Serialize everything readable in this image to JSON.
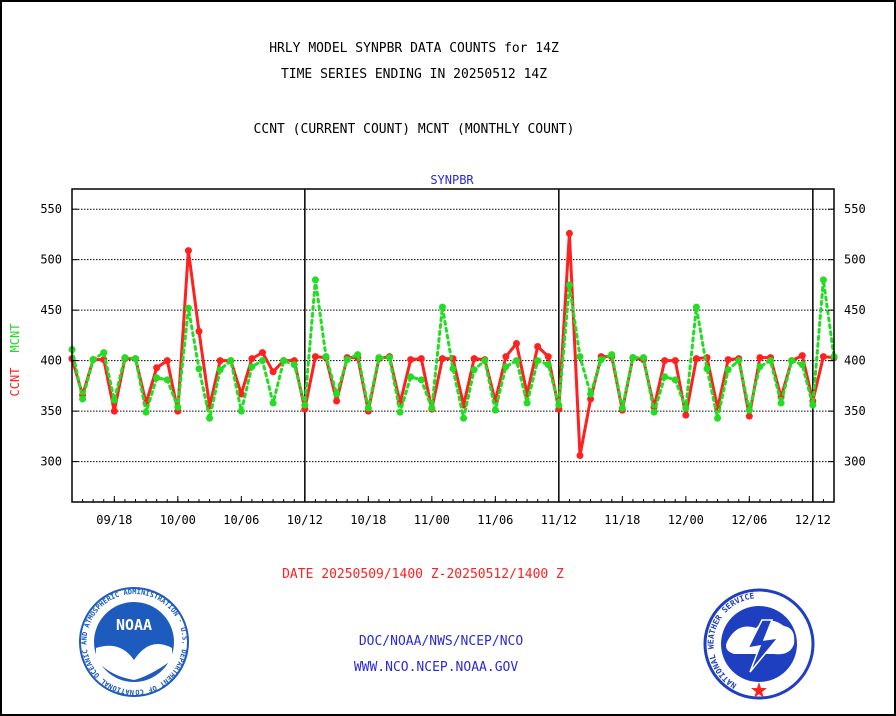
{
  "header": {
    "title_line1": "HRLY MODEL SYNPBR DATA COUNTS for 14Z",
    "title_line2": "TIME SERIES ENDING IN 20250512 14Z",
    "subtitle": "CCNT (CURRENT COUNT) MCNT (MONTHLY COUNT)"
  },
  "chart_data": {
    "type": "line",
    "title": "SYNPBR",
    "ylabel_ccnt": "CCNT",
    "ylabel_mcnt": "MCNT",
    "ylim": [
      260,
      570
    ],
    "y_ticks": [
      300,
      350,
      400,
      450,
      500,
      550
    ],
    "x_tick_labels": [
      "09/18",
      "10/00",
      "10/06",
      "10/12",
      "10/18",
      "11/00",
      "11/06",
      "11/12",
      "11/18",
      "12/00",
      "12/06",
      "12/12"
    ],
    "x_range_hours": [
      0,
      72
    ],
    "day_separators": [
      22,
      46,
      70
    ],
    "grid": true,
    "series": [
      {
        "name": "CCNT",
        "color": "#ff2020",
        "style": "solid",
        "x": [
          0,
          1,
          2,
          3,
          4,
          5,
          6,
          7,
          8,
          9,
          10,
          11,
          12,
          13,
          14,
          15,
          16,
          17,
          18,
          19,
          20,
          21,
          22,
          23,
          24,
          25,
          26,
          27,
          28,
          29,
          30,
          31,
          32,
          33,
          34,
          35,
          36,
          37,
          38,
          39,
          40,
          41,
          42,
          43,
          44,
          45,
          46,
          47,
          48,
          49,
          50,
          51,
          52,
          53,
          54,
          55,
          56,
          57,
          58,
          59,
          60,
          61,
          62,
          63,
          64,
          65,
          66,
          67,
          68,
          69,
          70,
          71,
          72
        ],
        "values": [
          402,
          366,
          401,
          401,
          350,
          402,
          402,
          358,
          393,
          400,
          350,
          509,
          429,
          355,
          400,
          400,
          367,
          402,
          408,
          389,
          400,
          400,
          352,
          404,
          403,
          360,
          403,
          403,
          350,
          402,
          404,
          358,
          401,
          402,
          352,
          402,
          402,
          356,
          402,
          401,
          360,
          404,
          417,
          367,
          414,
          404,
          352,
          526,
          306,
          362,
          404,
          404,
          351,
          403,
          401,
          354,
          400,
          400,
          346,
          402,
          403,
          353,
          401,
          402,
          345,
          403,
          403,
          364,
          400,
          405,
          360,
          404,
          403
        ]
      },
      {
        "name": "MCNT",
        "color": "#22dd22",
        "style": "dotted",
        "x": [
          0,
          1,
          2,
          3,
          4,
          5,
          6,
          7,
          8,
          9,
          10,
          11,
          12,
          13,
          14,
          15,
          16,
          17,
          18,
          19,
          20,
          21,
          22,
          23,
          24,
          25,
          26,
          27,
          28,
          29,
          30,
          31,
          32,
          33,
          34,
          35,
          36,
          37,
          38,
          39,
          40,
          41,
          42,
          43,
          44,
          45,
          46,
          47,
          48,
          49,
          50,
          51,
          52,
          53,
          54,
          55,
          56,
          57,
          58,
          59,
          60,
          61,
          62,
          63,
          64,
          65,
          66,
          67,
          68,
          69,
          70,
          71,
          72
        ],
        "values": [
          411,
          362,
          401,
          408,
          361,
          403,
          402,
          349,
          383,
          381,
          354,
          452,
          392,
          343,
          391,
          400,
          350,
          394,
          400,
          358,
          400,
          396,
          356,
          480,
          404,
          367,
          401,
          406,
          353,
          403,
          403,
          349,
          384,
          381,
          353,
          453,
          392,
          343,
          391,
          400,
          351,
          394,
          400,
          358,
          400,
          396,
          356,
          475,
          404,
          367,
          401,
          406,
          353,
          403,
          403,
          349,
          384,
          381,
          353,
          453,
          392,
          343,
          391,
          400,
          351,
          394,
          400,
          358,
          400,
          396,
          356,
          480,
          404
        ]
      }
    ]
  },
  "footer": {
    "date_range": "DATE 20250509/1400 Z-20250512/1400 Z",
    "org_path": "DOC/NOAA/NWS/NCEP/NCO",
    "website": "WWW.NCO.NCEP.NOAA.GOV"
  },
  "logos": {
    "noaa_center_text": "NOAA",
    "noaa_ring_text": "NATIONAL OCEANIC AND ATMOSPHERIC ADMINISTRATION · U.S. DEPARTMENT OF COMMERCE ·",
    "nws_ring_text": "NATIONAL WEATHER SERVICE"
  },
  "colors": {
    "title": "#000000",
    "chart_title": "#2a2ad8",
    "ccnt": "#ff2020",
    "mcnt": "#22dd22",
    "footer_red": "#ff2020",
    "footer_blue": "#2a2ad8",
    "noaa_blue": "#1d5bbf",
    "nws_blue": "#1e3fc0"
  }
}
